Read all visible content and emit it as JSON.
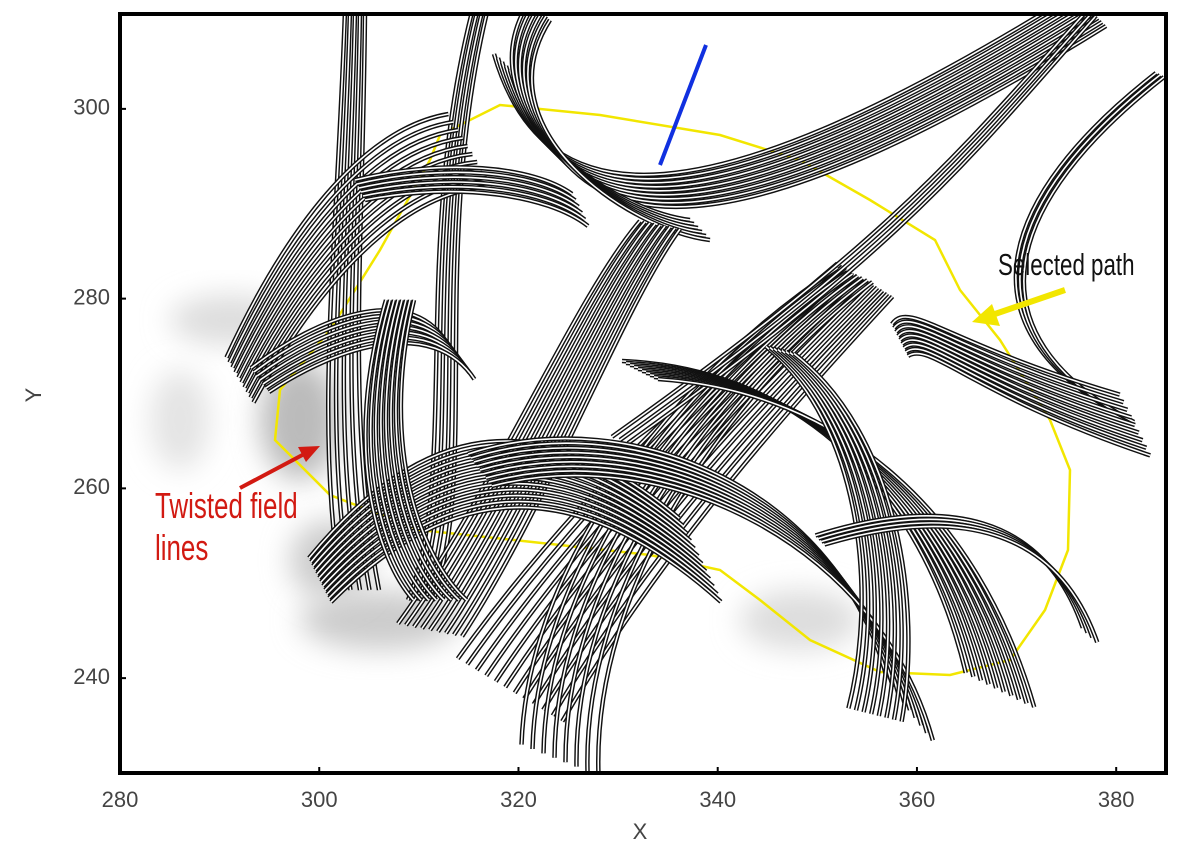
{
  "chart_data": {
    "type": "field-lines",
    "xlabel": "X",
    "ylabel": "Y",
    "xlim": [
      280,
      385
    ],
    "ylim": [
      230,
      310
    ],
    "xticks": [
      280,
      300,
      320,
      340,
      360,
      380
    ],
    "yticks": [
      240,
      260,
      280,
      300
    ],
    "annotations": [
      {
        "text": "Twisted field lines",
        "color": "#d21a12"
      },
      {
        "text": "Selected path",
        "color": "#111111"
      }
    ],
    "contour_color": "#f2e600",
    "line_color": "#111111"
  }
}
